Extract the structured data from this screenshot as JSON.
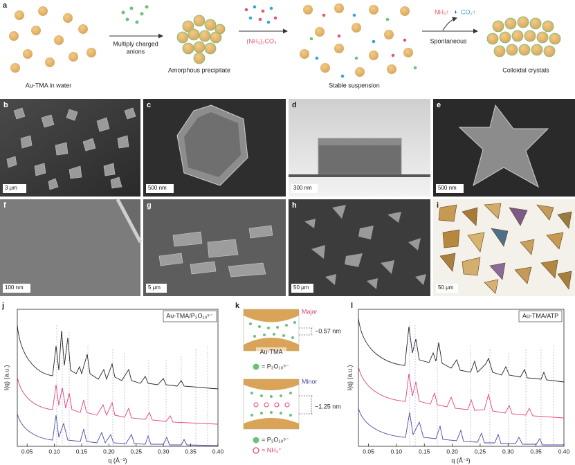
{
  "panel_a": {
    "label": "a",
    "steps": [
      "Au-TMA in water",
      "Amorphous precipitate",
      "Stable suspension",
      "Colloidal crystals"
    ],
    "arrow_texts": [
      [
        "Multiply charged",
        "anions"
      ],
      [
        "(NH₄)₂CO₃"
      ],
      [
        "Spontaneous"
      ]
    ],
    "gases": [
      "NH₃↑",
      "+",
      "CO₂↑"
    ]
  },
  "images": [
    {
      "label": "b",
      "scale": "3 μm"
    },
    {
      "label": "c",
      "scale": "500 nm"
    },
    {
      "label": "d",
      "scale": "300 nm"
    },
    {
      "label": "e",
      "scale": "500 nm"
    },
    {
      "label": "f",
      "scale": "100 nm"
    },
    {
      "label": "g",
      "scale": "5 μm"
    },
    {
      "label": "h",
      "scale": "50 μm"
    },
    {
      "label": "i",
      "scale": "50 μm"
    }
  ],
  "panel_j": {
    "label": "j",
    "legend": "Au-TMA/P₃O₁₀⁵⁻",
    "ylabel": "I(q) (a.u.)",
    "xlabel": "q (Å⁻¹)",
    "xlim": [
      0.032,
      0.4
    ],
    "xticks": [
      0.05,
      {
        "value": 0.1,
        "label": "0.10"
      },
      0.15,
      {
        "value": 0.2,
        "label": "0.20"
      },
      0.25,
      {
        "value": 0.3,
        "label": "0.30"
      },
      0.35,
      {
        "value": 0.4,
        "label": "0.40"
      }
    ]
  },
  "panel_k": {
    "label": "k",
    "major": "Major",
    "major_gap": "~0.57 nm",
    "particle": "Au-TMA",
    "legend_major": "= P₃O₁₀⁵⁻",
    "minor": "Minor",
    "minor_gap": "~1.25 nm",
    "legend_minor": [
      "= P₃O₁₀⁵⁻",
      "= NH₄⁺"
    ]
  },
  "panel_l": {
    "label": "l",
    "legend": "Au-TMA/ATP",
    "ylabel": "I(q) (a.u.)",
    "xlabel": "q (Å⁻¹)",
    "xlim": [
      0.032,
      0.4
    ],
    "xticks": [
      0.05,
      {
        "value": 0.1,
        "label": "0.10"
      },
      0.15,
      {
        "value": 0.2,
        "label": "0.20"
      },
      0.25,
      {
        "value": 0.3,
        "label": "0.30"
      },
      0.35,
      {
        "value": 0.4,
        "label": "0.40"
      }
    ]
  }
}
